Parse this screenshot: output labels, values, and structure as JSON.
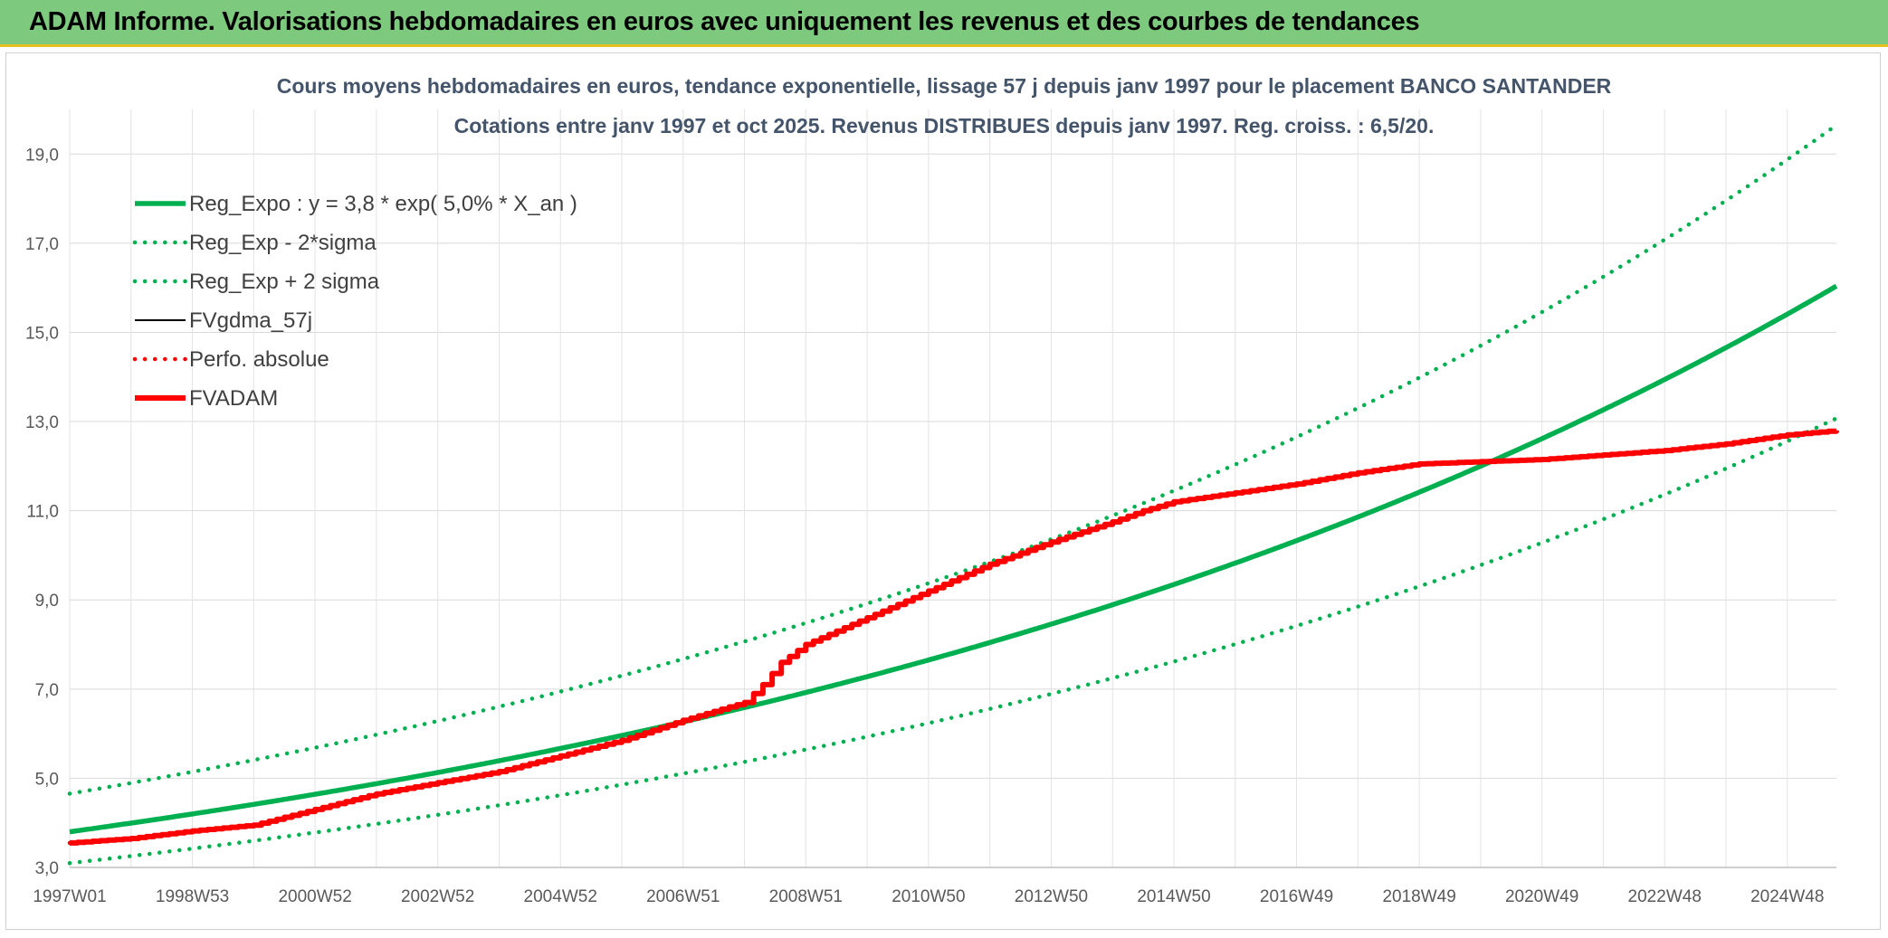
{
  "banner": {
    "title": "ADAM Informe. Valorisations hebdomadaires en euros avec uniquement les revenus et des courbes de tendances"
  },
  "colors": {
    "banner_bg": "#7dc97d",
    "banner_accent": "#e8c020",
    "reg_expo": "#00b050",
    "fvadam": "#ff0000",
    "fvgdma": "#000000",
    "title_text": "#44546a"
  },
  "chart_data": {
    "type": "line",
    "title_lines": [
      "Cours moyens hebdomadaires en euros, tendance exponentielle, lissage 57 j depuis janv 1997 pour le placement BANCO SANTANDER",
      "Cotations entre janv 1997 et oct 2025. Revenus DISTRIBUES depuis janv 1997. Reg. croiss. : 6,5/20."
    ],
    "x_range": [
      1997.0,
      2025.8
    ],
    "ylim": [
      3.0,
      20.0
    ],
    "y_ticks": [
      3.0,
      5.0,
      7.0,
      9.0,
      11.0,
      13.0,
      15.0,
      17.0,
      19.0
    ],
    "y_tick_labels": [
      "3,0",
      "5,0",
      "7,0",
      "9,0",
      "11,0",
      "13,0",
      "15,0",
      "17,0",
      "19,0"
    ],
    "x_tick_positions": [
      1997.0,
      1999.0,
      2001.0,
      2003.0,
      2005.0,
      2007.0,
      2009.0,
      2011.0,
      2013.0,
      2015.0,
      2017.0,
      2019.0,
      2021.0,
      2023.0,
      2025.0
    ],
    "x_tick_labels": [
      "1997W01",
      "1998W53",
      "2000W52",
      "2002W52",
      "2004W52",
      "2006W51",
      "2008W51",
      "2010W50",
      "2012W50",
      "2014W50",
      "2016W49",
      "2018W49",
      "2020W49",
      "2022W48",
      "2024W48"
    ],
    "grid": true,
    "legend_position": "top-left",
    "series": [
      {
        "name": "Reg_Expo : y = 3,8 * exp( 5,0% *  X_an )",
        "style": "solid-thick",
        "color": "#00b050",
        "formula": {
          "a": 3.8,
          "rate": 0.05,
          "x0": 1997.0,
          "factor": 1.0
        }
      },
      {
        "name": "Reg_Exp - 2*sigma",
        "style": "dotted",
        "color": "#00b050",
        "formula": {
          "a": 3.8,
          "rate": 0.05,
          "x0": 1997.0,
          "factor": 0.815
        }
      },
      {
        "name": "Reg_Exp + 2 sigma",
        "style": "dotted",
        "color": "#00b050",
        "formula": {
          "a": 3.8,
          "rate": 0.05,
          "x0": 1997.0,
          "factor": 1.225
        }
      },
      {
        "name": "FVgdma_57j",
        "style": "solid-thin",
        "color": "#000000",
        "x": [
          1997.0,
          1998.0,
          1999.0,
          2000.0,
          2001.0,
          2002.0,
          2003.0,
          2004.0,
          2005.0,
          2006.0,
          2007.0,
          2008.0,
          2008.3,
          2008.6,
          2009.0,
          2010.0,
          2011.0,
          2012.0,
          2013.0,
          2014.0,
          2014.5,
          2015.0,
          2016.0,
          2017.0,
          2018.0,
          2019.0,
          2020.0,
          2021.0,
          2022.0,
          2023.0,
          2024.0,
          2025.0,
          2025.8
        ],
        "y": [
          3.55,
          3.65,
          3.82,
          3.95,
          4.3,
          4.65,
          4.9,
          5.15,
          5.5,
          5.85,
          6.3,
          6.7,
          7.1,
          7.6,
          8.0,
          8.6,
          9.2,
          9.8,
          10.3,
          10.75,
          11.0,
          11.2,
          11.4,
          11.6,
          11.85,
          12.05,
          12.1,
          12.15,
          12.25,
          12.35,
          12.5,
          12.7,
          12.8
        ]
      },
      {
        "name": "Perfo. absolue",
        "style": "dotted",
        "color": "#ff0000",
        "x": [
          1997.0,
          1998.0,
          1999.0,
          2000.0,
          2001.0,
          2002.0,
          2003.0,
          2004.0,
          2005.0,
          2006.0,
          2007.0,
          2008.0,
          2008.3,
          2008.6,
          2009.0,
          2010.0,
          2011.0,
          2012.0,
          2013.0,
          2014.0,
          2014.5,
          2015.0,
          2016.0,
          2017.0,
          2018.0,
          2019.0,
          2020.0,
          2021.0,
          2022.0,
          2023.0,
          2024.0,
          2025.0,
          2025.8
        ],
        "y": [
          3.55,
          3.65,
          3.82,
          3.95,
          4.3,
          4.65,
          4.9,
          5.15,
          5.5,
          5.85,
          6.3,
          6.7,
          7.1,
          7.6,
          8.0,
          8.6,
          9.2,
          9.8,
          10.3,
          10.75,
          11.0,
          11.2,
          11.4,
          11.6,
          11.85,
          12.05,
          12.1,
          12.15,
          12.25,
          12.35,
          12.5,
          12.7,
          12.8
        ]
      },
      {
        "name": "FVADAM",
        "style": "solid-thick",
        "color": "#ff0000",
        "x": [
          1997.0,
          1998.0,
          1999.0,
          2000.0,
          2001.0,
          2002.0,
          2003.0,
          2004.0,
          2005.0,
          2006.0,
          2007.0,
          2008.0,
          2008.3,
          2008.6,
          2009.0,
          2010.0,
          2011.0,
          2012.0,
          2013.0,
          2014.0,
          2014.5,
          2015.0,
          2016.0,
          2017.0,
          2018.0,
          2019.0,
          2020.0,
          2021.0,
          2022.0,
          2023.0,
          2024.0,
          2025.0,
          2025.8
        ],
        "y": [
          3.55,
          3.65,
          3.82,
          3.95,
          4.3,
          4.65,
          4.9,
          5.15,
          5.5,
          5.85,
          6.3,
          6.7,
          7.1,
          7.6,
          8.0,
          8.6,
          9.2,
          9.8,
          10.3,
          10.75,
          11.0,
          11.2,
          11.4,
          11.6,
          11.85,
          12.05,
          12.1,
          12.15,
          12.25,
          12.35,
          12.5,
          12.7,
          12.8
        ]
      }
    ]
  }
}
